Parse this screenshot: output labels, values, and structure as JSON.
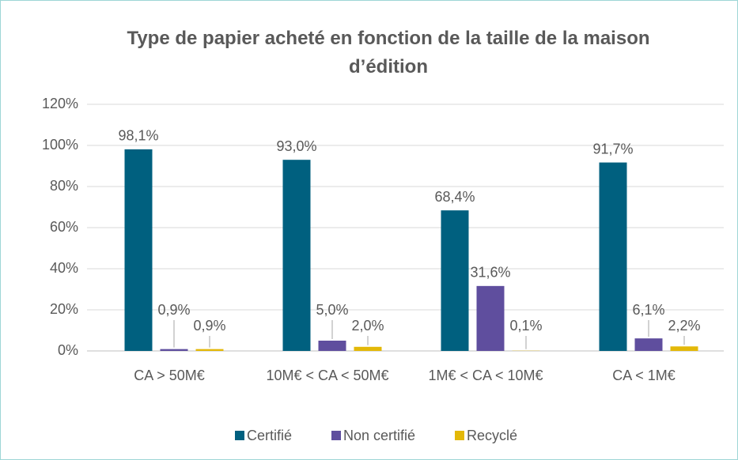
{
  "chart_data": {
    "type": "bar",
    "title": "Type de papier acheté en fonction de la taille de la maison d’édition",
    "categories": [
      "CA > 50M€",
      "10M€ < CA < 50M€",
      "1M€ < CA < 10M€",
      "CA < 1M€"
    ],
    "series": [
      {
        "name": "Certifié",
        "color": "#00607f",
        "values": [
          98.1,
          93.0,
          68.4,
          91.7
        ],
        "value_labels": [
          "98,1%",
          "93,0%",
          "68,4%",
          "91,7%"
        ]
      },
      {
        "name": "Non certifié",
        "color": "#5f4e9e",
        "values": [
          0.9,
          5.0,
          31.6,
          6.1
        ],
        "value_labels": [
          "0,9%",
          "5,0%",
          "31,6%",
          "6,1%"
        ]
      },
      {
        "name": "Recyclé",
        "color": "#e3b808",
        "values": [
          0.9,
          2.0,
          0.1,
          2.2
        ],
        "value_labels": [
          "0,9%",
          "2,0%",
          "0,1%",
          "2,2%"
        ]
      }
    ],
    "ylim": [
      0,
      120
    ],
    "yticks": [
      {
        "value": 0,
        "label": "0%"
      },
      {
        "value": 20,
        "label": "20%"
      },
      {
        "value": 40,
        "label": "40%"
      },
      {
        "value": 60,
        "label": "60%"
      },
      {
        "value": 80,
        "label": "80%"
      },
      {
        "value": 100,
        "label": "100%"
      },
      {
        "value": 120,
        "label": "120%"
      }
    ],
    "grid": true,
    "legend": "bottom"
  }
}
